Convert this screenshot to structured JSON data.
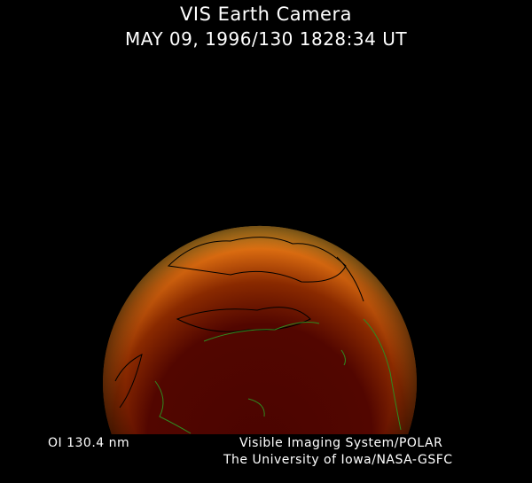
{
  "header": {
    "title": "VIS Earth Camera",
    "subtitle": "MAY 09, 1996/130 1828:34 UT"
  },
  "footer": {
    "wavelength": "OI  130.4 nm",
    "credit_line1": "Visible Imaging System/POLAR",
    "credit_line2": "The University of Iowa/NASA-GSFC"
  },
  "colors": {
    "background": "#000000",
    "limb_glow": "#f0a020",
    "disk_interior": "#4a0400",
    "coastlines_sunlit": "#2e8b20",
    "coastlines_dark": "#000000"
  }
}
